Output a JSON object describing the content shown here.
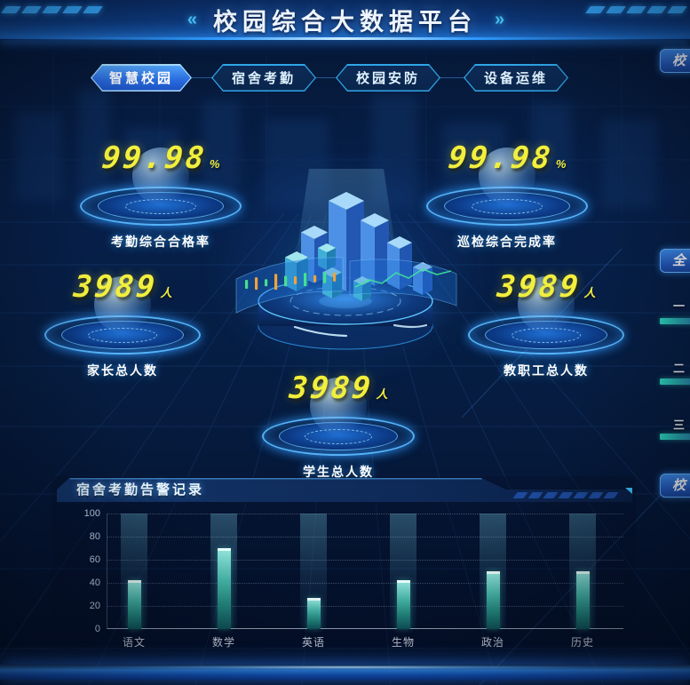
{
  "header": {
    "title": "校园综合大数据平台",
    "left_decor": "«",
    "right_decor": "»"
  },
  "tabs": [
    {
      "label": "智慧校园",
      "active": true
    },
    {
      "label": "宿舍考勤",
      "active": false
    },
    {
      "label": "校园安防",
      "active": false
    },
    {
      "label": "设备运维",
      "active": false
    }
  ],
  "stats": {
    "attendance_rate": {
      "value": "99.98",
      "unit": "%",
      "label": "考勤综合合格率"
    },
    "inspection_rate": {
      "value": "99.98",
      "unit": "%",
      "label": "巡检综合完成率"
    },
    "parents_total": {
      "value": "3989",
      "unit": "人",
      "label": "家长总人数"
    },
    "staff_total": {
      "value": "3989",
      "unit": "人",
      "label": "教职工总人数"
    },
    "students_total": {
      "value": "3989",
      "unit": "人",
      "label": "学生总人数"
    }
  },
  "right_edge": {
    "top_tab": "校",
    "middle_tab": "全",
    "rank_items": [
      "一",
      "二",
      "三"
    ],
    "bottom_tab": "校"
  },
  "alarm_panel": {
    "title": "宿舍考勤告警记录"
  },
  "chart_data": {
    "type": "bar",
    "title": "宿舍考勤告警记录",
    "categories": [
      "语文",
      "数学",
      "英语",
      "生物",
      "政治",
      "历史"
    ],
    "values": [
      42,
      70,
      27,
      42,
      50,
      50
    ],
    "xlabel": "",
    "ylabel": "",
    "ylim": [
      0,
      100
    ],
    "yticks": [
      0,
      20,
      40,
      60,
      80,
      100
    ],
    "grid": true,
    "legend_position": "none",
    "bar_color": "#47b8ab",
    "bg_column_color": "rgba(110,190,215,0.3)"
  },
  "colors": {
    "accent": "#2f9bff",
    "number_yellow": "#f2ef3d",
    "tab_border": "#2fa6e8",
    "header_bg": "#0d3a7e",
    "bar_teal": "#47b8ab"
  }
}
